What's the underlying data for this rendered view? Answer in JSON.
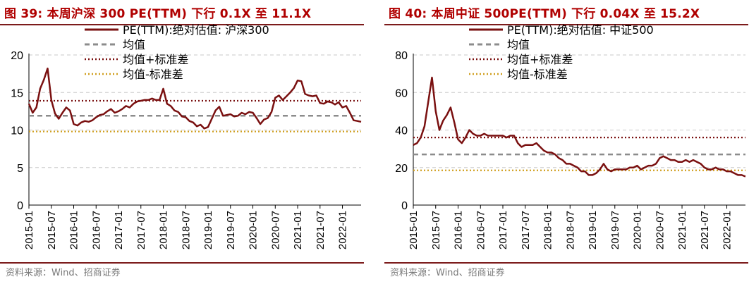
{
  "colors": {
    "pe_line": "#7a1010",
    "mean": "#8c8c8c",
    "plus_sd": "#7a1010",
    "minus_sd": "#d0a020",
    "grid": "#c8c8c8",
    "title": "#b00000",
    "rule": "#7c1b1b"
  },
  "charts": [
    {
      "title": "图 39: 本周沪深 300 PE(TTM) 下行 0.1X 至 11.1X",
      "source": "资料来源：Wind、招商证券",
      "chart_data": {
        "type": "line",
        "ylim": [
          0,
          20
        ],
        "yticks": [
          "0",
          "5",
          "10",
          "15",
          "20"
        ],
        "ytick_values": [
          0,
          5,
          10,
          15,
          20
        ],
        "grid": true,
        "legend_position": "top",
        "x_domain": [
          "2015-01",
          "2022-06"
        ],
        "xtick_labels": [
          "2015-01",
          "2015-07",
          "2016-01",
          "2016-07",
          "2017-01",
          "2017-07",
          "2018-01",
          "2018-07",
          "2019-01",
          "2019-07",
          "2020-01",
          "2020-07",
          "2021-01",
          "2021-07",
          "2022-01"
        ],
        "series": [
          {
            "name": "PE(TTM):绝对估值: 沪深300",
            "style": "solid",
            "x": [
              "2015-01",
              "2015-02",
              "2015-03",
              "2015-04",
              "2015-05",
              "2015-06",
              "2015-07",
              "2015-08",
              "2015-09",
              "2015-10",
              "2015-11",
              "2015-12",
              "2016-01",
              "2016-02",
              "2016-03",
              "2016-04",
              "2016-05",
              "2016-06",
              "2016-07",
              "2016-08",
              "2016-09",
              "2016-10",
              "2016-11",
              "2016-12",
              "2017-01",
              "2017-02",
              "2017-03",
              "2017-04",
              "2017-05",
              "2017-06",
              "2017-07",
              "2017-08",
              "2017-09",
              "2017-10",
              "2017-11",
              "2017-12",
              "2018-01",
              "2018-02",
              "2018-03",
              "2018-04",
              "2018-05",
              "2018-06",
              "2018-07",
              "2018-08",
              "2018-09",
              "2018-10",
              "2018-11",
              "2018-12",
              "2019-01",
              "2019-02",
              "2019-03",
              "2019-04",
              "2019-05",
              "2019-06",
              "2019-07",
              "2019-08",
              "2019-09",
              "2019-10",
              "2019-11",
              "2019-12",
              "2020-01",
              "2020-02",
              "2020-03",
              "2020-04",
              "2020-05",
              "2020-06",
              "2020-07",
              "2020-08",
              "2020-09",
              "2020-10",
              "2020-11",
              "2020-12",
              "2021-01",
              "2021-02",
              "2021-03",
              "2021-04",
              "2021-05",
              "2021-06",
              "2021-07",
              "2021-08",
              "2021-09",
              "2021-10",
              "2021-11",
              "2021-12",
              "2022-01",
              "2022-02",
              "2022-03",
              "2022-04",
              "2022-05",
              "2022-06"
            ],
            "values": [
              13.5,
              12.3,
              13.0,
              15.5,
              16.7,
              18.2,
              14.0,
              12.2,
              11.5,
              12.3,
              13.0,
              12.6,
              10.8,
              10.6,
              11.0,
              11.2,
              11.1,
              11.3,
              11.7,
              12.0,
              12.1,
              12.5,
              12.8,
              12.3,
              12.5,
              12.8,
              13.2,
              13.0,
              13.5,
              13.8,
              13.9,
              14.0,
              14.0,
              14.2,
              14.0,
              14.0,
              15.5,
              13.5,
              13.2,
              12.6,
              12.4,
              11.8,
              11.7,
              11.2,
              11.0,
              10.5,
              10.7,
              10.2,
              10.4,
              11.5,
              12.6,
              13.1,
              11.9,
              12.0,
              12.1,
              11.8,
              11.9,
              12.3,
              12.1,
              12.4,
              12.3,
              11.6,
              10.8,
              11.4,
              11.6,
              12.4,
              14.3,
              14.6,
              14.0,
              14.5,
              15.0,
              15.6,
              16.6,
              16.5,
              14.8,
              14.6,
              14.5,
              14.6,
              13.6,
              13.5,
              13.8,
              13.7,
              13.4,
              13.7,
              13.0,
              13.2,
              12.3,
              11.3,
              11.2,
              11.1
            ]
          },
          {
            "name": "均值",
            "style": "dashed",
            "value": 11.9
          },
          {
            "name": "均值+标准差",
            "style": "dotted",
            "value": 13.9
          },
          {
            "name": "均值-标准差",
            "style": "dotted",
            "value": 9.8
          }
        ]
      }
    },
    {
      "title": "图 40: 本周中证 500PE(TTM) 下行 0.04X 至 15.2X",
      "source": "资料来源：Wind、招商证券",
      "chart_data": {
        "type": "line",
        "ylim": [
          0,
          80
        ],
        "yticks": [
          "0",
          "20",
          "40",
          "60",
          "80"
        ],
        "ytick_values": [
          0,
          20,
          40,
          60,
          80
        ],
        "grid": true,
        "legend_position": "top",
        "x_domain": [
          "2015-01",
          "2022-06"
        ],
        "xtick_labels": [
          "2015-01",
          "2015-07",
          "2016-01",
          "2016-07",
          "2017-01",
          "2017-07",
          "2018-01",
          "2018-07",
          "2019-01",
          "2019-07",
          "2020-01",
          "2020-07",
          "2021-01",
          "2021-07",
          "2022-01"
        ],
        "series": [
          {
            "name": "PE(TTM):绝对估值: 中证500",
            "style": "solid",
            "x": [
              "2015-01",
              "2015-02",
              "2015-03",
              "2015-04",
              "2015-05",
              "2015-06",
              "2015-07",
              "2015-08",
              "2015-09",
              "2015-10",
              "2015-11",
              "2015-12",
              "2016-01",
              "2016-02",
              "2016-03",
              "2016-04",
              "2016-05",
              "2016-06",
              "2016-07",
              "2016-08",
              "2016-09",
              "2016-10",
              "2016-11",
              "2016-12",
              "2017-01",
              "2017-02",
              "2017-03",
              "2017-04",
              "2017-05",
              "2017-06",
              "2017-07",
              "2017-08",
              "2017-09",
              "2017-10",
              "2017-11",
              "2017-12",
              "2018-01",
              "2018-02",
              "2018-03",
              "2018-04",
              "2018-05",
              "2018-06",
              "2018-07",
              "2018-08",
              "2018-09",
              "2018-10",
              "2018-11",
              "2018-12",
              "2019-01",
              "2019-02",
              "2019-03",
              "2019-04",
              "2019-05",
              "2019-06",
              "2019-07",
              "2019-08",
              "2019-09",
              "2019-10",
              "2019-11",
              "2019-12",
              "2020-01",
              "2020-02",
              "2020-03",
              "2020-04",
              "2020-05",
              "2020-06",
              "2020-07",
              "2020-08",
              "2020-09",
              "2020-10",
              "2020-11",
              "2020-12",
              "2021-01",
              "2021-02",
              "2021-03",
              "2021-04",
              "2021-05",
              "2021-06",
              "2021-07",
              "2021-08",
              "2021-09",
              "2021-10",
              "2021-11",
              "2021-12",
              "2022-01",
              "2022-02",
              "2022-03",
              "2022-04",
              "2022-05",
              "2022-06"
            ],
            "values": [
              32,
              33,
              36,
              42,
              55,
              68,
              50,
              40,
              45,
              48,
              52,
              44,
              35,
              33,
              36,
              40,
              38,
              37,
              37,
              38,
              37,
              37,
              37,
              37,
              37,
              36,
              37,
              37,
              33,
              31,
              32,
              32,
              32,
              33,
              31,
              29,
              28,
              28,
              27,
              25,
              24,
              22,
              22,
              21,
              20,
              18,
              18,
              16,
              16,
              17,
              19,
              22,
              19,
              18,
              19,
              19,
              19,
              19,
              20,
              20,
              21,
              19,
              20,
              21,
              21,
              22,
              25,
              26,
              25,
              24,
              24,
              23,
              23,
              24,
              23,
              24,
              23,
              22,
              20,
              19,
              19,
              20,
              19,
              19,
              18,
              18,
              17,
              16,
              16,
              15.2
            ]
          },
          {
            "name": "均值",
            "style": "dashed",
            "value": 27
          },
          {
            "name": "均值+标准差",
            "style": "dotted",
            "value": 36
          },
          {
            "name": "均值-标准差",
            "style": "dotted",
            "value": 18.5
          }
        ]
      }
    }
  ]
}
